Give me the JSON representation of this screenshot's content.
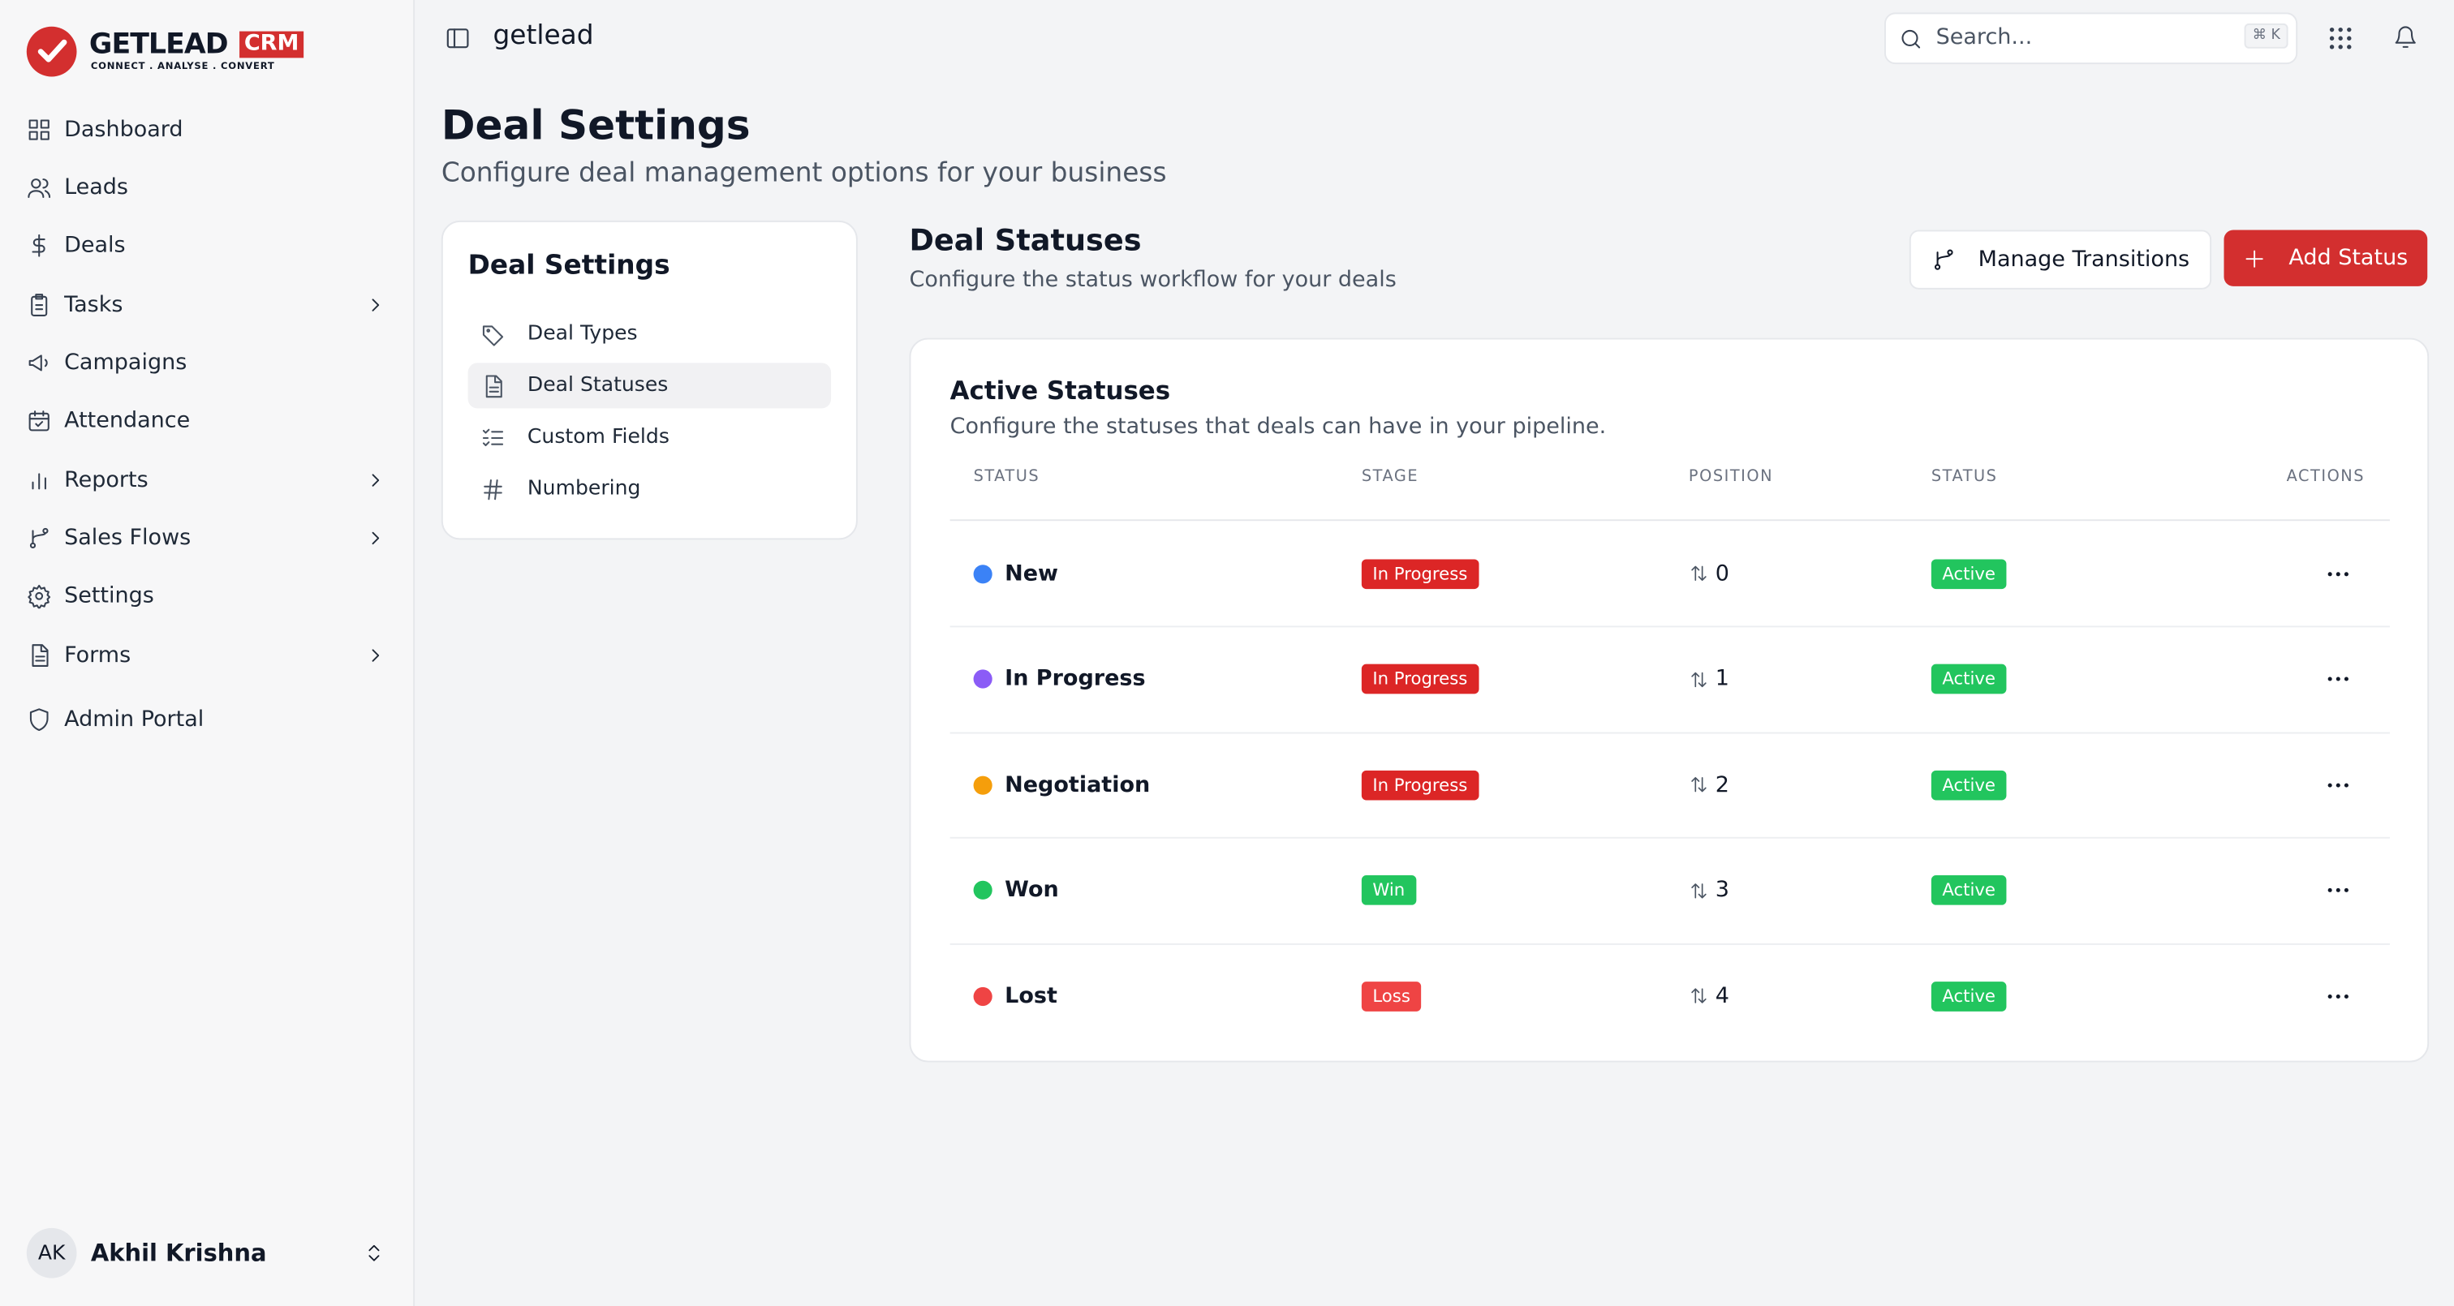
{
  "logo": {
    "brand": "GETLEAD",
    "badge": "CRM",
    "tagline": "CONNECT . ANALYSE . CONVERT"
  },
  "sidebar": {
    "items": [
      "Dashboard",
      "Leads",
      "Deals",
      "Tasks",
      "Campaigns",
      "Attendance",
      "Reports",
      "Sales Flows",
      "Settings",
      "Forms",
      "Admin Portal"
    ],
    "user": {
      "initials": "AK",
      "name": "Akhil Krishna"
    }
  },
  "header": {
    "workspace": "getlead",
    "search": "Search...",
    "shortcut": "⌘ K"
  },
  "page": {
    "title": "Deal Settings",
    "subtitle": "Configure deal management options for your business"
  },
  "settings_menu": {
    "title": "Deal Settings",
    "items": [
      "Deal Types",
      "Deal Statuses",
      "Custom Fields",
      "Numbering"
    ]
  },
  "section": {
    "title": "Deal Statuses",
    "subtitle": "Configure the status workflow for your deals",
    "buttons": [
      "Manage Transitions",
      "Add Status"
    ]
  },
  "table": {
    "title": "Active Statuses",
    "subtitle": "Configure the statuses that deals can have in your pipeline.",
    "columns": [
      "STATUS",
      "STAGE",
      "POSITION",
      "STATUS",
      "ACTIONS"
    ],
    "rows": [
      {
        "name": "New",
        "color": "#3b82f6",
        "stage": "In Progress",
        "stage_color": "#dc2626",
        "position": 0,
        "status": "Active"
      },
      {
        "name": "In Progress",
        "color": "#8b5cf6",
        "stage": "In Progress",
        "stage_color": "#dc2626",
        "position": 1,
        "status": "Active"
      },
      {
        "name": "Negotiation",
        "color": "#f59e0b",
        "stage": "In Progress",
        "stage_color": "#dc2626",
        "position": 2,
        "status": "Active"
      },
      {
        "name": "Won",
        "color": "#22c55e",
        "stage": "Win",
        "stage_color": "#22c55e",
        "position": 3,
        "status": "Active"
      },
      {
        "name": "Lost",
        "color": "#ef4444",
        "stage": "Loss",
        "stage_color": "#ef4444",
        "position": 4,
        "status": "Active"
      }
    ]
  }
}
